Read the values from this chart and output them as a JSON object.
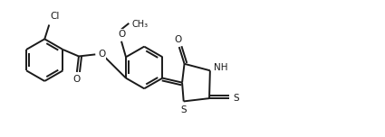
{
  "bg_color": "#ffffff",
  "line_color": "#1a1a1a",
  "line_width": 1.4,
  "figsize": [
    4.25,
    1.52
  ],
  "dpi": 100,
  "xlim": [
    0,
    10.2
  ],
  "ylim": [
    0,
    3.65
  ]
}
